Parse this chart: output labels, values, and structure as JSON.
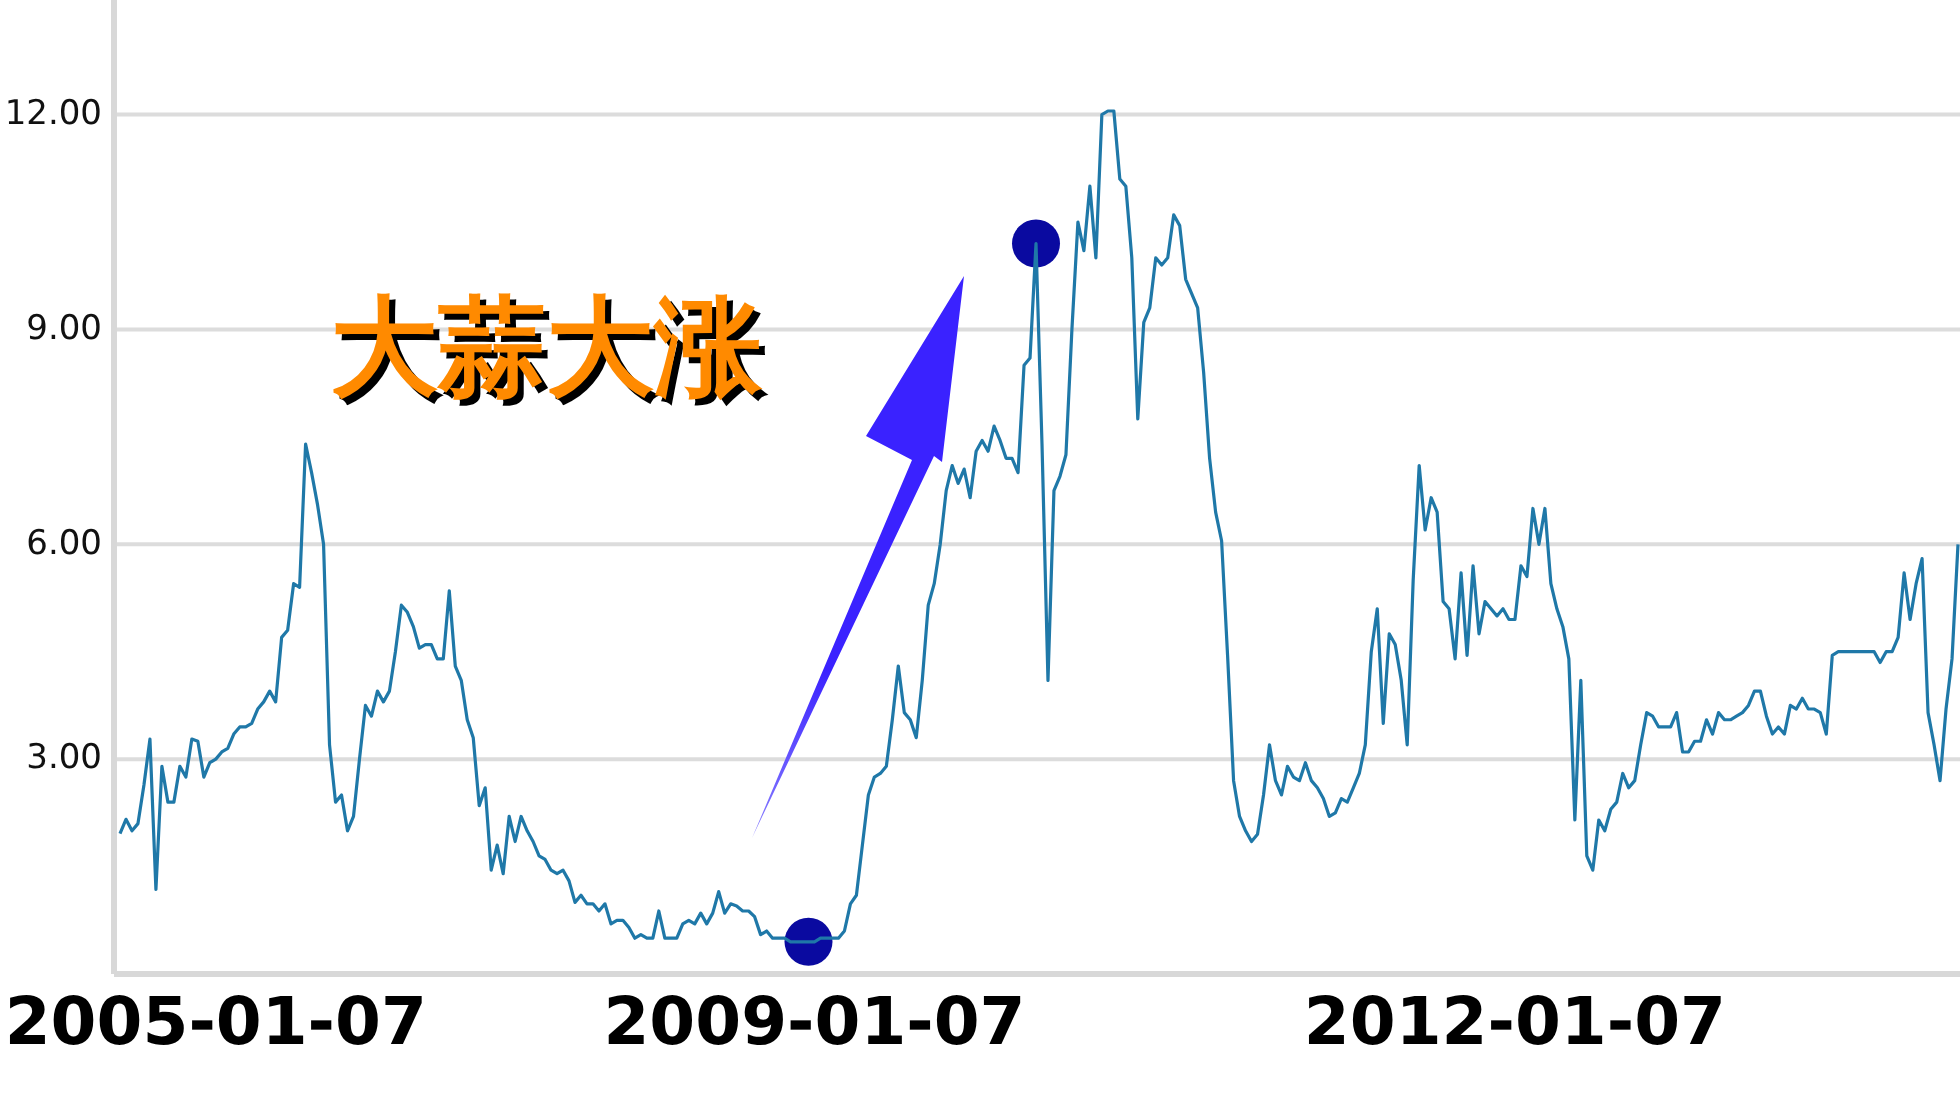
{
  "chart_data": {
    "type": "line",
    "categories": [
      null,
      null,
      null,
      null,
      null,
      null,
      null,
      null,
      null,
      null,
      null,
      null,
      null,
      null,
      null,
      null,
      "2005-01-07",
      null,
      null,
      null,
      null,
      null,
      null,
      null,
      null,
      null,
      null,
      null,
      null,
      null,
      null,
      null,
      null,
      null,
      null,
      null,
      null,
      null,
      null,
      null,
      null,
      null,
      null,
      null,
      null,
      null,
      null,
      null,
      null,
      null,
      null,
      null,
      null,
      null,
      null,
      null,
      null,
      null,
      null,
      null,
      null,
      null,
      null,
      null,
      null,
      null,
      null,
      null,
      null,
      null,
      null,
      null,
      null,
      null,
      null,
      null,
      null,
      null,
      null,
      null,
      null,
      null,
      null,
      null,
      null,
      null,
      null,
      null,
      null,
      null,
      null,
      null,
      null,
      null,
      null,
      null,
      null,
      null,
      null,
      null,
      null,
      null,
      null,
      null,
      null,
      null,
      null,
      null,
      null,
      null,
      null,
      null,
      null,
      null,
      null,
      null,
      "2009-01-07",
      null,
      null,
      null,
      null,
      null,
      null,
      null,
      null,
      null,
      null,
      null,
      null,
      null,
      null,
      null,
      null,
      null,
      null,
      null,
      null,
      null,
      null,
      null,
      null,
      null,
      null,
      null,
      null,
      null,
      null,
      null,
      null,
      null,
      null,
      null,
      null,
      null,
      null,
      null,
      null,
      null,
      null,
      null,
      null,
      null,
      null,
      null,
      null,
      null,
      null,
      null,
      null,
      null,
      null,
      null,
      null,
      null,
      null,
      null,
      null,
      null,
      null,
      null,
      null,
      null,
      null,
      null,
      null,
      null,
      null,
      null,
      null,
      null,
      null,
      null,
      null,
      null,
      null,
      null,
      null,
      null,
      null,
      null,
      null,
      null,
      null,
      null,
      null,
      null,
      null,
      null,
      null,
      null,
      null,
      null,
      null,
      null,
      null,
      null,
      null,
      null,
      null,
      null,
      null,
      null,
      null,
      null,
      null,
      null,
      null,
      null,
      null,
      null,
      null,
      null,
      null,
      "2012-01-07",
      null,
      null,
      null,
      null,
      null,
      null,
      null,
      null,
      null,
      null,
      null,
      null,
      null,
      null,
      null,
      null,
      null,
      null,
      null,
      null,
      null,
      null,
      null,
      null,
      null,
      null,
      null,
      null,
      null,
      null,
      null,
      null,
      null,
      null,
      null,
      null,
      null,
      null,
      null,
      null,
      null,
      null,
      null,
      null,
      null,
      null,
      null,
      null,
      null,
      null,
      null,
      null,
      null,
      null,
      null,
      null,
      null,
      null,
      null,
      null,
      null,
      null,
      null,
      null,
      null,
      null,
      null,
      null,
      null,
      null,
      null,
      null,
      null,
      null
    ],
    "series": [
      {
        "color": "#1f78a8",
        "values": [
          1.96,
          2.16,
          2.0,
          2.1,
          2.64,
          3.28,
          1.18,
          2.9,
          2.4,
          2.4,
          2.9,
          2.75,
          3.28,
          3.25,
          2.75,
          2.95,
          3.0,
          3.1,
          3.15,
          3.35,
          3.45,
          3.45,
          3.5,
          3.7,
          3.8,
          3.95,
          3.8,
          4.7,
          4.8,
          5.45,
          5.4,
          7.4,
          7.0,
          6.55,
          6.0,
          3.2,
          2.4,
          2.5,
          2.0,
          2.2,
          3.0,
          3.75,
          3.6,
          3.95,
          3.8,
          3.95,
          4.5,
          5.15,
          5.05,
          4.85,
          4.55,
          4.6,
          4.6,
          4.4,
          4.4,
          5.35,
          4.3,
          4.1,
          3.55,
          3.3,
          2.35,
          2.6,
          1.45,
          1.8,
          1.4,
          2.2,
          1.85,
          2.2,
          2.0,
          1.85,
          1.65,
          1.6,
          1.45,
          1.4,
          1.45,
          1.3,
          1.0,
          1.1,
          0.98,
          0.98,
          0.88,
          0.98,
          0.7,
          0.75,
          0.75,
          0.65,
          0.5,
          0.55,
          0.5,
          0.5,
          0.88,
          0.5,
          0.5,
          0.5,
          0.7,
          0.75,
          0.7,
          0.85,
          0.7,
          0.85,
          1.15,
          0.85,
          0.98,
          0.95,
          0.88,
          0.88,
          0.8,
          0.55,
          0.6,
          0.5,
          0.5,
          0.5,
          0.45,
          0.45,
          0.45,
          0.45,
          0.45,
          0.5,
          0.5,
          0.5,
          0.5,
          0.6,
          0.98,
          1.1,
          1.8,
          2.5,
          2.75,
          2.8,
          2.9,
          3.55,
          4.3,
          3.65,
          3.55,
          3.3,
          4.1,
          5.15,
          5.45,
          6.0,
          6.75,
          7.1,
          6.85,
          7.05,
          6.65,
          7.3,
          7.45,
          7.3,
          7.65,
          7.45,
          7.2,
          7.2,
          7.0,
          8.5,
          8.6,
          10.2,
          7.4,
          4.1,
          6.75,
          6.95,
          7.25,
          9.0,
          10.5,
          10.1,
          11.0,
          10.0,
          12.0,
          12.05,
          12.05,
          11.1,
          11.0,
          10.0,
          7.75,
          9.1,
          9.3,
          10.0,
          9.9,
          10.0,
          10.6,
          10.45,
          9.7,
          9.5,
          9.3,
          8.4,
          7.2,
          6.45,
          6.05,
          4.45,
          2.7,
          2.2,
          2.0,
          1.85,
          1.95,
          2.5,
          3.2,
          2.7,
          2.5,
          2.9,
          2.75,
          2.7,
          2.95,
          2.7,
          2.6,
          2.45,
          2.2,
          2.25,
          2.45,
          2.4,
          2.6,
          2.8,
          3.2,
          4.5,
          5.1,
          3.5,
          4.75,
          4.6,
          4.1,
          3.2,
          5.5,
          7.1,
          6.2,
          6.65,
          6.45,
          5.2,
          5.1,
          4.4,
          5.6,
          4.45,
          5.7,
          4.75,
          5.2,
          5.1,
          5.0,
          5.1,
          4.95,
          4.95,
          5.7,
          5.55,
          6.5,
          6.0,
          6.5,
          5.45,
          5.1,
          4.85,
          4.4,
          2.15,
          4.1,
          1.65,
          1.45,
          2.15,
          2.0,
          2.3,
          2.4,
          2.8,
          2.6,
          2.7,
          3.2,
          3.65,
          3.6,
          3.45,
          3.45,
          3.45,
          3.65,
          3.1,
          3.1,
          3.25,
          3.25,
          3.55,
          3.35,
          3.65,
          3.55,
          3.55,
          3.6,
          3.65,
          3.75,
          3.95,
          3.95,
          3.6,
          3.35,
          3.45,
          3.35,
          3.75,
          3.7,
          3.85,
          3.7,
          3.7,
          3.65,
          3.35,
          4.45,
          4.5,
          4.5,
          4.5,
          4.5,
          4.5,
          4.5,
          4.5,
          4.35,
          4.5,
          4.5,
          4.7,
          5.6,
          4.95,
          5.45,
          5.8,
          3.65,
          3.2,
          2.7,
          3.7,
          4.4,
          6.0
        ]
      },
      {
        "type": "scatter",
        "marker": "circle",
        "color": "#0a0aa0",
        "values": [
          null,
          null,
          null,
          null,
          null,
          null,
          null,
          null,
          null,
          null,
          null,
          null,
          null,
          null,
          null,
          null,
          null,
          null,
          null,
          null,
          null,
          null,
          null,
          null,
          null,
          null,
          null,
          null,
          null,
          null,
          null,
          null,
          null,
          null,
          null,
          null,
          null,
          null,
          null,
          null,
          null,
          null,
          null,
          null,
          null,
          null,
          null,
          null,
          null,
          null,
          null,
          null,
          null,
          null,
          null,
          null,
          null,
          null,
          null,
          null,
          null,
          null,
          null,
          null,
          null,
          null,
          null,
          null,
          null,
          null,
          null,
          null,
          null,
          null,
          null,
          null,
          null,
          null,
          null,
          null,
          null,
          null,
          null,
          null,
          null,
          null,
          null,
          null,
          null,
          null,
          null,
          null,
          null,
          null,
          null,
          null,
          null,
          null,
          null,
          null,
          null,
          null,
          null,
          null,
          null,
          null,
          null,
          null,
          null,
          null,
          null,
          null,
          null,
          null,
          null,
          0.45,
          null,
          null,
          null,
          null,
          null,
          null,
          null,
          null,
          null,
          null,
          null,
          null,
          null,
          null,
          null,
          null,
          null,
          null,
          null,
          null,
          null,
          null,
          null,
          null,
          null,
          null,
          null,
          null,
          null,
          null,
          null,
          null,
          null,
          null,
          null,
          null,
          null,
          10.2,
          null,
          null,
          null,
          null,
          null,
          null,
          null,
          null,
          null,
          null,
          null,
          null,
          null,
          null,
          null,
          null,
          null,
          null,
          null,
          null,
          null,
          null,
          null,
          null,
          null,
          null,
          null,
          null,
          null,
          null,
          null,
          null,
          null,
          null,
          null,
          null,
          null,
          null,
          null,
          null,
          null,
          null,
          null,
          null,
          null,
          null,
          null,
          null,
          null,
          null,
          null,
          null,
          null,
          null,
          null,
          null,
          null,
          null,
          null,
          null,
          null,
          null,
          null,
          null,
          null,
          null,
          null,
          null,
          null,
          null,
          null,
          null,
          null,
          null,
          null,
          null,
          null,
          null,
          null,
          null,
          null,
          null,
          null,
          null,
          null,
          null,
          null,
          null,
          null,
          null,
          null,
          null,
          null,
          null,
          null,
          null,
          null,
          null,
          null,
          null,
          null,
          null,
          null,
          null,
          null,
          null,
          null,
          null,
          null,
          null,
          null,
          null,
          null,
          null,
          null,
          null,
          null,
          null,
          null,
          null,
          null,
          null,
          null,
          null,
          null,
          null,
          null,
          null,
          null,
          null,
          null,
          null,
          null,
          null,
          null,
          null,
          null,
          null,
          null,
          null,
          null,
          null,
          null,
          null,
          null,
          null,
          null,
          null,
          null,
          null,
          null,
          null,
          null,
          null
        ]
      }
    ],
    "ylim": [
      0,
      13.6
    ],
    "yticks": [
      {
        "value": 3,
        "label": "3.00"
      },
      {
        "value": 6,
        "label": "6.00"
      },
      {
        "value": 9,
        "label": "9.00"
      },
      {
        "value": 12,
        "label": "12.00"
      }
    ],
    "grid": "y",
    "annotations": [
      "大蒜大涨"
    ]
  }
}
